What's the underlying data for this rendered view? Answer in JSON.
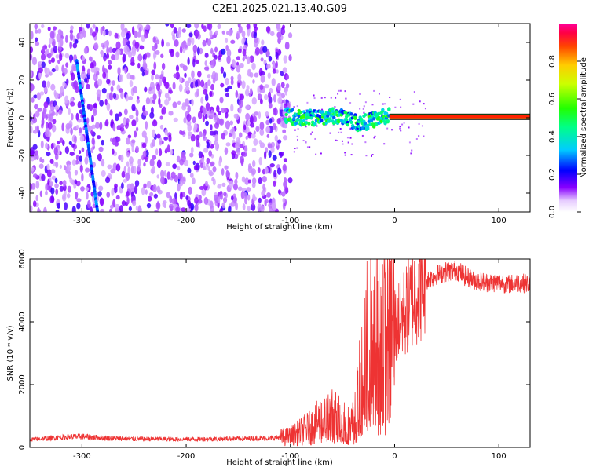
{
  "page": {
    "title": "C2E1.2025.021.13.40.G09"
  },
  "chart_data": [
    {
      "type": "heatmap",
      "title": "C2E1.2025.021.13.40.G09",
      "xlabel": "Height of straight line (km)",
      "ylabel": "Frequency (Hz)",
      "xlim": [
        -350,
        130
      ],
      "ylim": [
        -50,
        50
      ],
      "xticks": [
        -300,
        -200,
        -100,
        0,
        100
      ],
      "xtick_labels": [
        "-300",
        "-200",
        "-100",
        "0",
        "100"
      ],
      "yticks": [
        -40,
        -20,
        0,
        20,
        40
      ],
      "ytick_labels": [
        "-40",
        "-20",
        "0",
        "20",
        "40"
      ],
      "colorbar": {
        "label": "Normalized spectral amplitude",
        "range": [
          0,
          1
        ],
        "ticks": [
          0.0,
          0.2,
          0.4,
          0.6,
          0.8
        ],
        "tick_labels": [
          "0.0",
          "0.2",
          "0.4",
          "0.6",
          "0.8"
        ]
      },
      "features": {
        "noise_region_x": [
          -350,
          -100
        ],
        "diagonal_streak": {
          "x": [
            -305,
            -285
          ],
          "y": [
            30,
            -50
          ]
        },
        "signal_track": {
          "x": [
            -105,
            -90,
            -75,
            -60,
            -45,
            -35,
            -25,
            -15,
            -5,
            10,
            50,
            130
          ],
          "y": [
            1,
            0,
            0,
            1,
            0,
            -3,
            -2,
            0,
            1,
            1,
            0.5,
            0.5
          ]
        }
      }
    },
    {
      "type": "line",
      "xlabel": "Height of straight line (km)",
      "ylabel": "SNR (10 * v/v)",
      "xlim": [
        -350,
        130
      ],
      "ylim": [
        0,
        6000
      ],
      "xticks": [
        -300,
        -200,
        -100,
        0,
        100
      ],
      "xtick_labels": [
        "-300",
        "-200",
        "-100",
        "0",
        "100"
      ],
      "yticks": [
        0,
        2000,
        4000,
        6000
      ],
      "ytick_labels": [
        "0",
        "2000",
        "4000",
        "6000"
      ],
      "series": [
        {
          "color": "#ee3333",
          "x": [
            -350,
            -320,
            -300,
            -280,
            -250,
            -200,
            -150,
            -120,
            -100,
            -90,
            -80,
            -70,
            -60,
            -50,
            -45,
            -40,
            -35,
            -30,
            -25,
            -20,
            -15,
            -10,
            -5,
            0,
            10,
            20,
            30,
            40,
            50,
            60,
            70,
            80,
            90,
            100,
            110,
            120,
            130
          ],
          "y": [
            250,
            320,
            350,
            300,
            270,
            260,
            280,
            290,
            350,
            500,
            650,
            900,
            1000,
            1000,
            700,
            800,
            1500,
            2700,
            3500,
            4000,
            3800,
            3500,
            3700,
            3900,
            4300,
            4900,
            5300,
            5500,
            5600,
            5650,
            5400,
            5300,
            5250,
            5250,
            5200,
            5250,
            5200
          ]
        }
      ]
    }
  ]
}
